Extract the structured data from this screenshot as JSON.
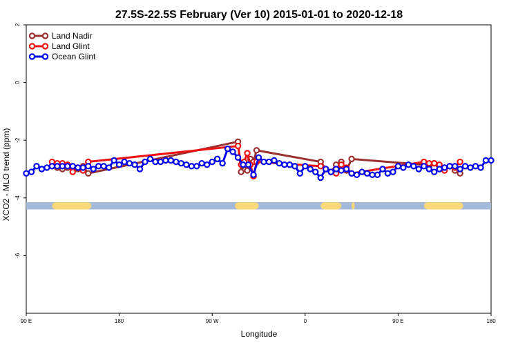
{
  "chart_data": {
    "type": "line",
    "title": "27.5S-22.5S February (Ver 10)   2015-01-01 to 2020-12-18",
    "xlabel": "Longitude",
    "ylabel": "XCO2 - MLO trend (ppm)",
    "xlim": [
      0,
      450
    ],
    "ylim": [
      -8,
      2
    ],
    "x_ticks": [
      {
        "value": 0,
        "label": "90 E"
      },
      {
        "value": 90,
        "label": "180"
      },
      {
        "value": 180,
        "label": "90 W"
      },
      {
        "value": 270,
        "label": "0"
      },
      {
        "value": 360,
        "label": "90 E"
      },
      {
        "value": 450,
        "label": "180"
      }
    ],
    "y_ticks": [
      {
        "value": 2,
        "label": "2"
      },
      {
        "value": 0,
        "label": "0"
      },
      {
        "value": -2,
        "label": "-2"
      },
      {
        "value": -4,
        "label": "-4"
      },
      {
        "value": -6,
        "label": "-6"
      }
    ],
    "land_band": {
      "y_range": [
        -4.4,
        -4.15
      ],
      "color_ocean": "#a4b8d8",
      "color_land": "#f9d977",
      "land_segments": [
        [
          25,
          63
        ],
        [
          202,
          225
        ],
        [
          285,
          305
        ],
        [
          315,
          318
        ],
        [
          385,
          423
        ]
      ]
    },
    "legend_position": "top-left",
    "series": [
      {
        "name": "Land Nadir",
        "color": "#9a3030",
        "x": [
          25,
          30,
          35,
          40,
          45,
          50,
          55,
          60,
          205,
          208,
          211,
          214,
          217,
          220,
          223,
          285,
          290,
          295,
          300,
          305,
          310,
          315,
          385,
          390,
          395,
          400,
          405,
          410,
          415,
          420
        ],
        "y": [
          -2.9,
          -2.95,
          -3.0,
          -2.95,
          -2.95,
          -3.0,
          -2.9,
          -3.15,
          -2.05,
          -3.1,
          -2.85,
          -3.05,
          -2.65,
          -2.75,
          -2.35,
          -2.75,
          -3.0,
          -3.1,
          -2.85,
          -2.75,
          -3.05,
          -2.65,
          -2.85,
          -2.95,
          -2.8,
          -3.0,
          -2.95,
          -2.9,
          -3.05,
          -3.15
        ]
      },
      {
        "name": "Land Glint",
        "color": "#ee1111",
        "x": [
          25,
          30,
          35,
          40,
          45,
          50,
          55,
          60,
          205,
          208,
          211,
          214,
          217,
          220,
          223,
          285,
          290,
          295,
          300,
          305,
          310,
          315,
          385,
          390,
          395,
          400,
          405,
          410,
          415,
          420
        ],
        "y": [
          -2.75,
          -2.8,
          -2.8,
          -2.85,
          -3.1,
          -2.95,
          -3.05,
          -2.75,
          -2.2,
          -2.85,
          -2.75,
          -2.45,
          -2.85,
          -3.25,
          -2.75,
          -2.9,
          -3.0,
          -3.1,
          -3.15,
          -2.85,
          -2.95,
          -3.15,
          -2.75,
          -2.8,
          -2.8,
          -2.85,
          -3.05,
          -2.9,
          -2.95,
          -2.75
        ]
      },
      {
        "name": "Ocean Glint",
        "color": "#0000ee",
        "x": [
          0,
          5,
          10,
          15,
          20,
          25,
          30,
          35,
          40,
          45,
          50,
          55,
          60,
          65,
          70,
          75,
          80,
          85,
          90,
          95,
          100,
          105,
          110,
          115,
          120,
          125,
          130,
          135,
          140,
          145,
          150,
          155,
          160,
          165,
          170,
          175,
          180,
          185,
          190,
          195,
          200,
          205,
          210,
          215,
          220,
          225,
          230,
          235,
          240,
          245,
          250,
          255,
          260,
          265,
          270,
          275,
          280,
          285,
          290,
          295,
          300,
          305,
          310,
          315,
          320,
          325,
          330,
          335,
          340,
          345,
          350,
          355,
          360,
          365,
          370,
          375,
          380,
          385,
          390,
          395,
          400,
          405,
          410,
          415,
          420,
          425,
          430,
          435,
          440,
          445,
          450
        ],
        "y": [
          -3.15,
          -3.1,
          -2.9,
          -3.0,
          -2.95,
          -2.9,
          -2.9,
          -2.9,
          -2.9,
          -2.9,
          -2.95,
          -2.95,
          -2.9,
          -3.0,
          -2.9,
          -2.9,
          -2.95,
          -2.7,
          -2.85,
          -2.75,
          -2.8,
          -2.85,
          -3.0,
          -2.75,
          -2.65,
          -2.75,
          -2.75,
          -2.7,
          -2.7,
          -2.75,
          -2.8,
          -2.85,
          -2.9,
          -2.9,
          -2.8,
          -2.85,
          -2.75,
          -2.65,
          -2.8,
          -2.3,
          -2.4,
          -2.6,
          -2.85,
          -2.85,
          -3.2,
          -2.6,
          -2.75,
          -2.75,
          -2.7,
          -2.8,
          -2.85,
          -2.85,
          -2.9,
          -3.15,
          -2.9,
          -3.0,
          -3.1,
          -3.3,
          -3.0,
          -3.1,
          -3.0,
          -3.05,
          -3.0,
          -3.15,
          -3.2,
          -3.1,
          -3.15,
          -3.2,
          -3.2,
          -3.0,
          -3.15,
          -3.1,
          -2.9,
          -2.95,
          -2.85,
          -2.9,
          -3.0,
          -2.9,
          -3.0,
          -3.1,
          -3.0,
          -2.95,
          -2.9,
          -2.9,
          -3.0,
          -2.9,
          -2.95,
          -2.9,
          -2.95,
          -2.7,
          -2.7
        ]
      }
    ]
  }
}
